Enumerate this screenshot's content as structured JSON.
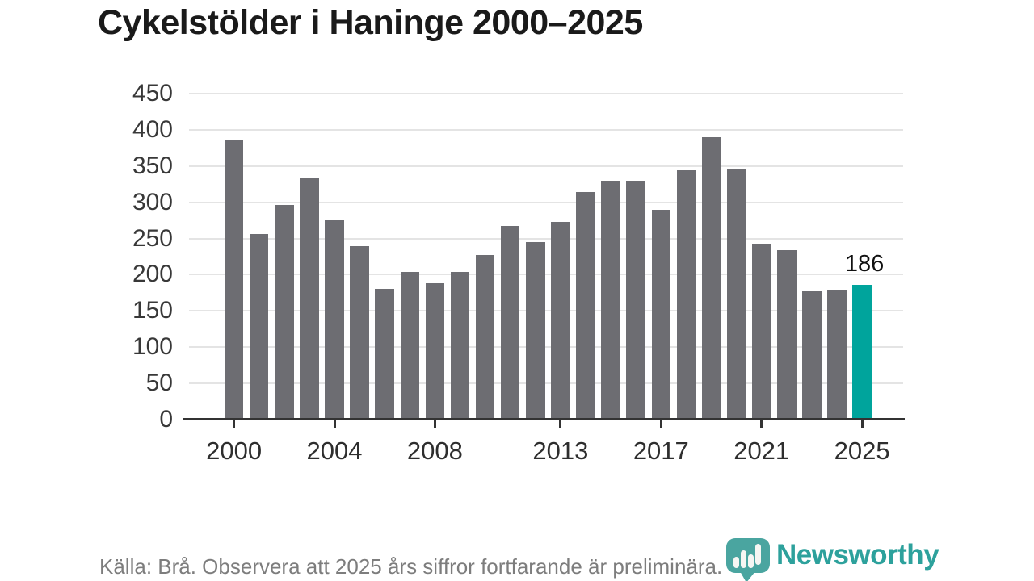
{
  "title": "Cykelstölder i Haninge 2000–2025",
  "footer": {
    "source_note": "Källa: Brå. Observera att 2025 års siffror fortfarande är preliminära."
  },
  "logo": {
    "brand": "Newsworthy",
    "icon": "newsworthy-speech-bubble-bar-chart-icon",
    "icon_color": "#4aa5a0",
    "icon_bar_color": "#f6f6f3",
    "text_color": "#2da19c"
  },
  "chart_data": {
    "type": "bar",
    "title": "Cykelstölder i Haninge 2000–2025",
    "x": [
      2000,
      2001,
      2002,
      2003,
      2004,
      2005,
      2006,
      2007,
      2008,
      2009,
      2010,
      2011,
      2012,
      2013,
      2014,
      2015,
      2016,
      2017,
      2018,
      2019,
      2020,
      2021,
      2022,
      2023,
      2024,
      2025
    ],
    "values": [
      385,
      256,
      296,
      334,
      275,
      240,
      181,
      204,
      188,
      204,
      227,
      267,
      245,
      273,
      314,
      330,
      330,
      290,
      344,
      390,
      346,
      243,
      234,
      177,
      178,
      186
    ],
    "xlabel": "",
    "ylabel": "",
    "ylim": [
      0,
      450
    ],
    "yticks": [
      0,
      50,
      100,
      150,
      200,
      250,
      300,
      350,
      400,
      450
    ],
    "xticks_labeled": [
      2000,
      2004,
      2008,
      2013,
      2017,
      2021,
      2025
    ],
    "grid": "horizontal",
    "legend": "none",
    "bar_color": "#6d6d72",
    "grid_color": "#e4e4e4",
    "axis_color": "#333333",
    "highlight": {
      "x": 2025,
      "value": 186,
      "color": "#00a49c"
    },
    "value_labels": [
      {
        "x": 2025,
        "text": "186"
      }
    ]
  }
}
